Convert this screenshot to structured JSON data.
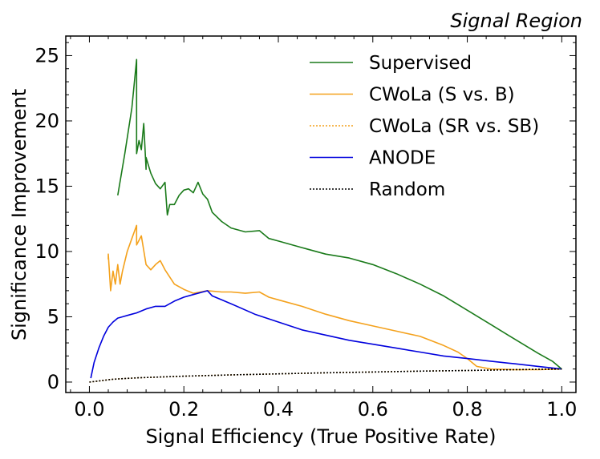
{
  "chart_data": {
    "type": "line",
    "title": "Signal Region",
    "xlabel": "Signal Efficiency (True Positive Rate)",
    "ylabel": "Significance Improvement",
    "xlim": [
      -0.05,
      1.03
    ],
    "ylim": [
      -0.8,
      26.5
    ],
    "xticks": [
      "0.0",
      "0.2",
      "0.4",
      "0.6",
      "0.8",
      "1.0"
    ],
    "xtick_values": [
      0.0,
      0.2,
      0.4,
      0.6,
      0.8,
      1.0
    ],
    "yticks": [
      "0",
      "5",
      "10",
      "15",
      "20",
      "25"
    ],
    "ytick_values": [
      0,
      5,
      10,
      15,
      20,
      25
    ],
    "grid": false,
    "legend_position": "top-right",
    "series": [
      {
        "name": "Supervised",
        "color": "#1a7a1a",
        "dash": "solid",
        "x": [
          0.06,
          0.06,
          0.075,
          0.09,
          0.1,
          0.1,
          0.105,
          0.11,
          0.115,
          0.12,
          0.12,
          0.13,
          0.14,
          0.15,
          0.16,
          0.165,
          0.17,
          0.18,
          0.19,
          0.2,
          0.21,
          0.22,
          0.23,
          0.24,
          0.25,
          0.26,
          0.28,
          0.3,
          0.33,
          0.36,
          0.38,
          0.4,
          0.45,
          0.5,
          0.55,
          0.6,
          0.65,
          0.7,
          0.75,
          0.8,
          0.85,
          0.9,
          0.95,
          0.98,
          1.0
        ],
        "y": [
          14.3,
          14.3,
          17.5,
          21.0,
          24.7,
          17.5,
          18.5,
          17.8,
          19.8,
          16.3,
          17.2,
          16.0,
          15.2,
          14.8,
          15.3,
          12.8,
          13.6,
          13.6,
          14.3,
          14.7,
          14.8,
          14.5,
          15.3,
          14.4,
          14.0,
          13.0,
          12.3,
          11.8,
          11.5,
          11.6,
          11.0,
          10.8,
          10.3,
          9.8,
          9.5,
          9.0,
          8.3,
          7.5,
          6.6,
          5.5,
          4.4,
          3.3,
          2.2,
          1.6,
          1.0
        ]
      },
      {
        "name": "CWoLa (S vs. B)",
        "color": "#f4a11c",
        "dash": "solid",
        "x": [
          0.04,
          0.04,
          0.045,
          0.05,
          0.055,
          0.06,
          0.065,
          0.07,
          0.08,
          0.09,
          0.1,
          0.1,
          0.11,
          0.12,
          0.13,
          0.14,
          0.15,
          0.16,
          0.18,
          0.2,
          0.22,
          0.25,
          0.28,
          0.3,
          0.33,
          0.36,
          0.38,
          0.4,
          0.45,
          0.5,
          0.55,
          0.6,
          0.65,
          0.7,
          0.75,
          0.78,
          0.8,
          0.82,
          0.85,
          0.9,
          0.95,
          1.0
        ],
        "y": [
          9.4,
          9.8,
          7.0,
          8.5,
          7.5,
          9.0,
          7.5,
          8.5,
          10.0,
          11.0,
          12.0,
          10.5,
          11.2,
          9.0,
          8.6,
          9.0,
          9.3,
          8.6,
          7.5,
          7.1,
          6.8,
          7.0,
          6.9,
          6.9,
          6.8,
          6.9,
          6.5,
          6.3,
          5.8,
          5.2,
          4.7,
          4.3,
          3.9,
          3.5,
          2.8,
          2.3,
          1.8,
          1.2,
          1.0,
          0.95,
          0.95,
          1.0
        ]
      },
      {
        "name": "CWoLa (SR vs. SB)",
        "color": "#f4a11c",
        "dash": "dotted",
        "x": [
          0.0,
          0.05,
          0.1,
          0.2,
          0.3,
          0.4,
          0.5,
          0.6,
          0.7,
          0.8,
          0.9,
          1.0
        ],
        "y": [
          0.0,
          0.22,
          0.32,
          0.45,
          0.55,
          0.63,
          0.71,
          0.77,
          0.84,
          0.89,
          0.95,
          1.0
        ]
      },
      {
        "name": "ANODE",
        "color": "#0000dd",
        "dash": "solid",
        "x": [
          0.003,
          0.01,
          0.02,
          0.03,
          0.04,
          0.05,
          0.06,
          0.07,
          0.08,
          0.09,
          0.1,
          0.12,
          0.14,
          0.16,
          0.18,
          0.2,
          0.22,
          0.24,
          0.25,
          0.26,
          0.28,
          0.3,
          0.35,
          0.4,
          0.45,
          0.5,
          0.55,
          0.6,
          0.65,
          0.7,
          0.75,
          0.8,
          0.85,
          0.9,
          0.95,
          1.0
        ],
        "y": [
          0.3,
          1.5,
          2.6,
          3.5,
          4.2,
          4.6,
          4.9,
          5.0,
          5.1,
          5.2,
          5.3,
          5.6,
          5.8,
          5.8,
          6.2,
          6.5,
          6.7,
          6.9,
          7.0,
          6.6,
          6.3,
          6.0,
          5.2,
          4.6,
          4.0,
          3.6,
          3.2,
          2.9,
          2.6,
          2.3,
          2.0,
          1.8,
          1.6,
          1.4,
          1.2,
          1.0
        ]
      },
      {
        "name": "Random",
        "color": "#000000",
        "dash": "dotted",
        "x": [
          0.0,
          0.05,
          0.1,
          0.2,
          0.3,
          0.4,
          0.5,
          0.6,
          0.7,
          0.8,
          0.9,
          1.0
        ],
        "y": [
          0.0,
          0.22,
          0.32,
          0.45,
          0.55,
          0.63,
          0.71,
          0.77,
          0.84,
          0.89,
          0.95,
          1.0
        ]
      }
    ]
  }
}
